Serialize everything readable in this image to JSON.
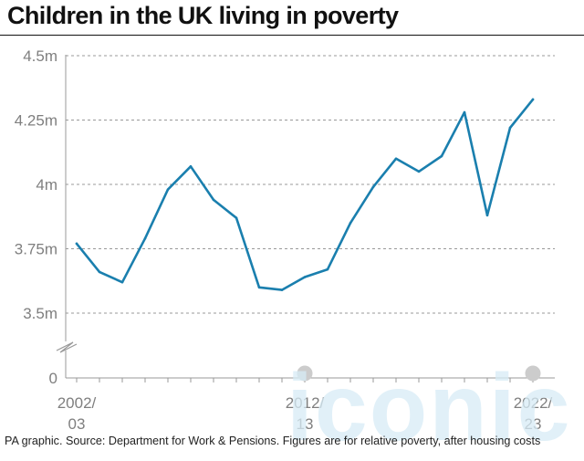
{
  "title": "Children in the UK living in poverty",
  "footer": "PA graphic. Source: Department for Work & Pensions. Figures are for relative poverty, after housing costs",
  "watermark": "iconic",
  "colors": {
    "line": "#1a7fae",
    "grid": "#999999",
    "axis_text": "#7f7f7f",
    "marker": "#cccccc"
  },
  "chart_data": {
    "type": "line",
    "title": "Children in the UK living in poverty",
    "xlabel": "",
    "ylabel": "",
    "y_ticks": [
      "0",
      "3.5m",
      "3.75m",
      "4m",
      "4.25m",
      "4.5m"
    ],
    "y_axis_break": true,
    "ylim": [
      3.5,
      4.5
    ],
    "x_tick_labels": [
      {
        "index": 0,
        "line1": "2002/",
        "line2": "03"
      },
      {
        "index": 10,
        "line1": "2012/",
        "line2": "13"
      },
      {
        "index": 20,
        "line1": "2022/",
        "line2": "23"
      }
    ],
    "highlighted_years": [
      10,
      20
    ],
    "grid": true,
    "series": [
      {
        "values": [
          3.77,
          3.66,
          3.62,
          3.79,
          3.98,
          4.07,
          3.94,
          3.87,
          3.6,
          3.59,
          3.64,
          3.67,
          3.85,
          3.99,
          4.1,
          4.05,
          4.11,
          4.28,
          3.88,
          4.22,
          4.33
        ]
      }
    ]
  }
}
